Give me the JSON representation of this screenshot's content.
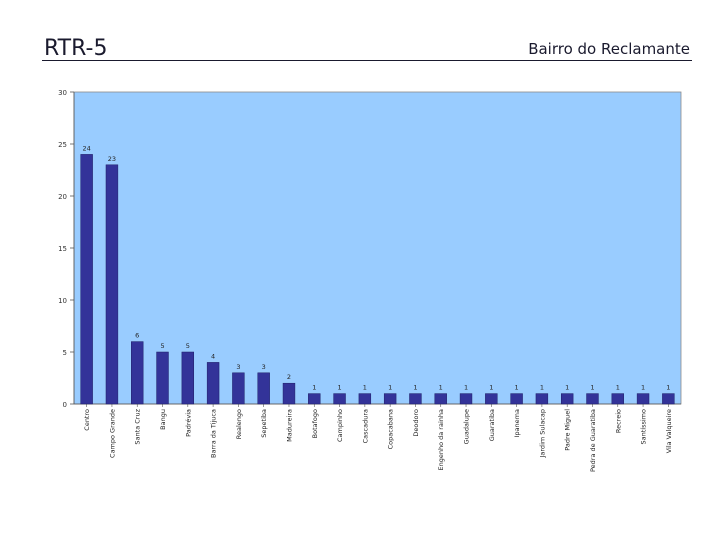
{
  "slide": {
    "title": "RTR-5",
    "subtitle": "Bairro do Reclamante"
  },
  "chart_data": {
    "type": "bar",
    "title": "",
    "xlabel": "",
    "ylabel": "",
    "ylim": [
      0,
      30
    ],
    "yticks": [
      0,
      5,
      10,
      15,
      20,
      25,
      30
    ],
    "grid": false,
    "legend": "none",
    "plot_background": "#99ccff",
    "bar_color": "#333399",
    "categories": [
      "Centro",
      "Campo Grande",
      "Santa Cruz",
      "Bangu",
      "Padrévia",
      "Barra da Tijuca",
      "Realengo",
      "Sepetiba",
      "Madureira",
      "Botafogo",
      "Campinho",
      "Cascadura",
      "Copacabana",
      "Deodoro",
      "Engenho da rainha",
      "Guadalupe",
      "Guaratiba",
      "Ipanema",
      "Jardim Sulacap",
      "Padre Miguel",
      "Pedra de Guaratiba",
      "Recreio",
      "Santíssimo",
      "Vila Valqueire"
    ],
    "values": [
      24,
      23,
      6,
      5,
      5,
      4,
      3,
      3,
      2,
      1,
      1,
      1,
      1,
      1,
      1,
      1,
      1,
      1,
      1,
      1,
      1,
      1,
      1,
      1
    ]
  }
}
